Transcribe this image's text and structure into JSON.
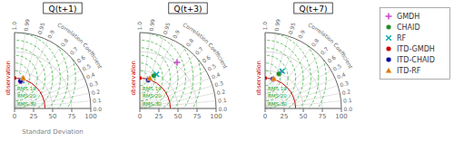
{
  "chart_data": [
    {
      "type": "taylor",
      "title": "Q(t+1)",
      "xlabel": "Standard Deviation",
      "corr_label": "Correlation Coefficient",
      "xlim": [
        0,
        100
      ],
      "xticks": [
        0,
        25,
        50,
        75,
        100
      ],
      "ylim": [
        0,
        100
      ],
      "yticks": [
        0,
        25,
        50,
        75,
        100
      ],
      "tick_labels": "x",
      "grid": true,
      "corr_ticks": [
        {
          "value": 0,
          "label": "0.0"
        },
        0.1,
        0.2,
        0.3,
        0.4,
        0.5,
        0.6,
        0.7,
        0.8,
        0.9,
        0.95,
        0.99,
        {
          "value": 1,
          "label": "1.0"
        }
      ],
      "rmse": {
        "color": "#22aa22",
        "values": [
          10,
          20,
          30,
          40,
          50,
          60,
          70,
          80
        ],
        "labels": [
          {
            "value": 10,
            "label": "RMS 10"
          },
          {
            "value": 20,
            "label": "RMS 20"
          },
          {
            "value": 30,
            "label": "RMS 30"
          }
        ]
      },
      "reference": {
        "name": "observation",
        "std": 40,
        "color": "#cc0000"
      },
      "series": [
        {
          "name": "GMDH",
          "color": "#cc44cc",
          "marker": "plus",
          "r": 0.972,
          "std": 37
        },
        {
          "name": "CHAID",
          "color": "#228B22",
          "marker": "circle",
          "r": 0.97,
          "std": 39
        },
        {
          "name": "RF",
          "color": "#00aaaa",
          "marker": "cross",
          "r": 0.968,
          "std": 38
        },
        {
          "name": "ITD-GMDH",
          "color": "#cc0000",
          "marker": "circle",
          "r": 0.975,
          "std": 37
        },
        {
          "name": "ITD-CHAID",
          "color": "#000099",
          "marker": "circle",
          "r": 0.977,
          "std": 37
        },
        {
          "name": "ITD-RF",
          "color": "#dd7700",
          "marker": "triangle",
          "r": 0.963,
          "std": 42
        }
      ]
    },
    {
      "type": "taylor",
      "title": "Q(t+3)",
      "corr_label": "Correlation Coefficient",
      "xlim": [
        0,
        100
      ],
      "xticks": [
        0,
        25,
        50,
        75,
        100
      ],
      "ylim": [
        0,
        100
      ],
      "yticks": [
        0,
        25,
        50,
        75,
        100
      ],
      "tick_labels": "x",
      "grid": true,
      "corr_ticks": [
        {
          "value": 0,
          "label": "0.0"
        },
        0.1,
        0.2,
        0.3,
        0.4,
        0.5,
        0.6,
        0.7,
        0.8,
        0.9,
        0.95,
        0.99,
        {
          "value": 1,
          "label": "1.0"
        }
      ],
      "rmse": {
        "color": "#22aa22",
        "values": [
          10,
          20,
          30,
          40,
          50,
          60,
          70,
          80
        ],
        "labels": [
          {
            "value": 10,
            "label": "RMS 10"
          },
          {
            "value": 20,
            "label": "RMS 20"
          },
          {
            "value": 30,
            "label": "RMS 30"
          }
        ]
      },
      "reference": {
        "name": "observation",
        "std": 40,
        "color": "#cc0000"
      },
      "series": [
        {
          "name": "GMDH",
          "color": "#cc44cc",
          "marker": "plus",
          "r": 0.78,
          "std": 78
        },
        {
          "name": "CHAID",
          "color": "#228B22",
          "marker": "circle",
          "r": 0.92,
          "std": 47
        },
        {
          "name": "RF",
          "color": "#00aaaa",
          "marker": "cross",
          "r": 0.9,
          "std": 50
        },
        {
          "name": "ITD-GMDH",
          "color": "#cc0000",
          "marker": "circle",
          "r": 0.955,
          "std": 40
        },
        {
          "name": "ITD-CHAID",
          "color": "#000099",
          "marker": "circle",
          "r": 0.96,
          "std": 39
        },
        {
          "name": "ITD-RF",
          "color": "#dd7700",
          "marker": "triangle",
          "r": 0.95,
          "std": 42
        }
      ]
    },
    {
      "type": "taylor",
      "title": "Q(t+7)",
      "corr_label": "Correlation Coefficient",
      "xlim": [
        0,
        100
      ],
      "xticks": [
        0,
        25,
        50,
        75,
        100
      ],
      "ylim": [
        0,
        100
      ],
      "yticks": [
        0,
        25,
        50,
        75,
        100
      ],
      "tick_labels": "x",
      "grid": true,
      "legend": "right",
      "corr_ticks": [
        {
          "value": 0,
          "label": "0.0"
        },
        0.1,
        0.2,
        0.3,
        0.4,
        0.5,
        0.6,
        0.7,
        0.8,
        0.9,
        0.95,
        0.99,
        {
          "value": 1,
          "label": "1.0"
        }
      ],
      "rmse": {
        "color": "#22aa22",
        "values": [
          10,
          20,
          30,
          40,
          50,
          60,
          70,
          80
        ],
        "labels": [
          {
            "value": 10,
            "label": "RMS 10"
          },
          {
            "value": 20,
            "label": "RMS 20"
          },
          {
            "value": 30,
            "label": "RMS 30"
          }
        ]
      },
      "reference": {
        "name": "observation",
        "std": 40,
        "color": "#cc0000"
      },
      "series": [
        {
          "name": "GMDH",
          "color": "#cc44cc",
          "marker": "plus",
          "r": 0.92,
          "std": 52
        },
        {
          "name": "CHAID",
          "color": "#228B22",
          "marker": "circle",
          "r": 0.93,
          "std": 49
        },
        {
          "name": "RF",
          "color": "#00aaaa",
          "marker": "cross",
          "r": 0.91,
          "std": 54
        },
        {
          "name": "ITD-GMDH",
          "color": "#cc0000",
          "marker": "circle",
          "r": 0.965,
          "std": 40
        },
        {
          "name": "ITD-CHAID",
          "color": "#000099",
          "marker": "circle",
          "r": 0.968,
          "std": 40
        },
        {
          "name": "ITD-RF",
          "color": "#dd7700",
          "marker": "triangle",
          "r": 0.962,
          "std": 41
        }
      ]
    }
  ]
}
